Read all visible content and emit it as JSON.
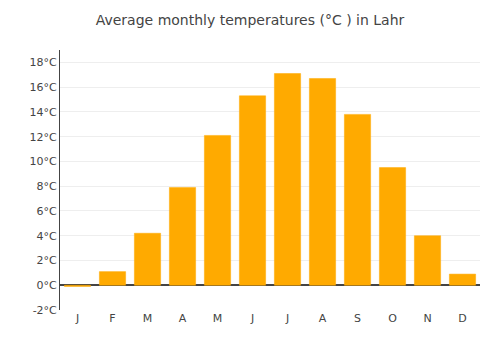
{
  "chart_data": {
    "type": "bar",
    "title": "Average monthly temperatures (°C ) in Lahr",
    "categories": [
      "J",
      "F",
      "M",
      "A",
      "M",
      "J",
      "J",
      "A",
      "S",
      "O",
      "N",
      "D"
    ],
    "values": [
      -0.1,
      1.1,
      4.2,
      7.9,
      12.1,
      15.3,
      17.1,
      16.7,
      13.8,
      9.5,
      4.0,
      0.9
    ],
    "color": "#FFAA00",
    "ylim": [
      -2,
      19
    ],
    "yticks": [
      {
        "value": -2,
        "label": "-2°C"
      },
      {
        "value": 0,
        "label": "0°C"
      },
      {
        "value": 2,
        "label": "2°C"
      },
      {
        "value": 4,
        "label": "4°C"
      },
      {
        "value": 6,
        "label": "6°C"
      },
      {
        "value": 8,
        "label": "8°C"
      },
      {
        "value": 10,
        "label": "10°C"
      },
      {
        "value": 12,
        "label": "12°C"
      },
      {
        "value": 14,
        "label": "14°C"
      },
      {
        "value": 16,
        "label": "16°C"
      },
      {
        "value": 18,
        "label": "18°C"
      }
    ],
    "grid": true
  }
}
